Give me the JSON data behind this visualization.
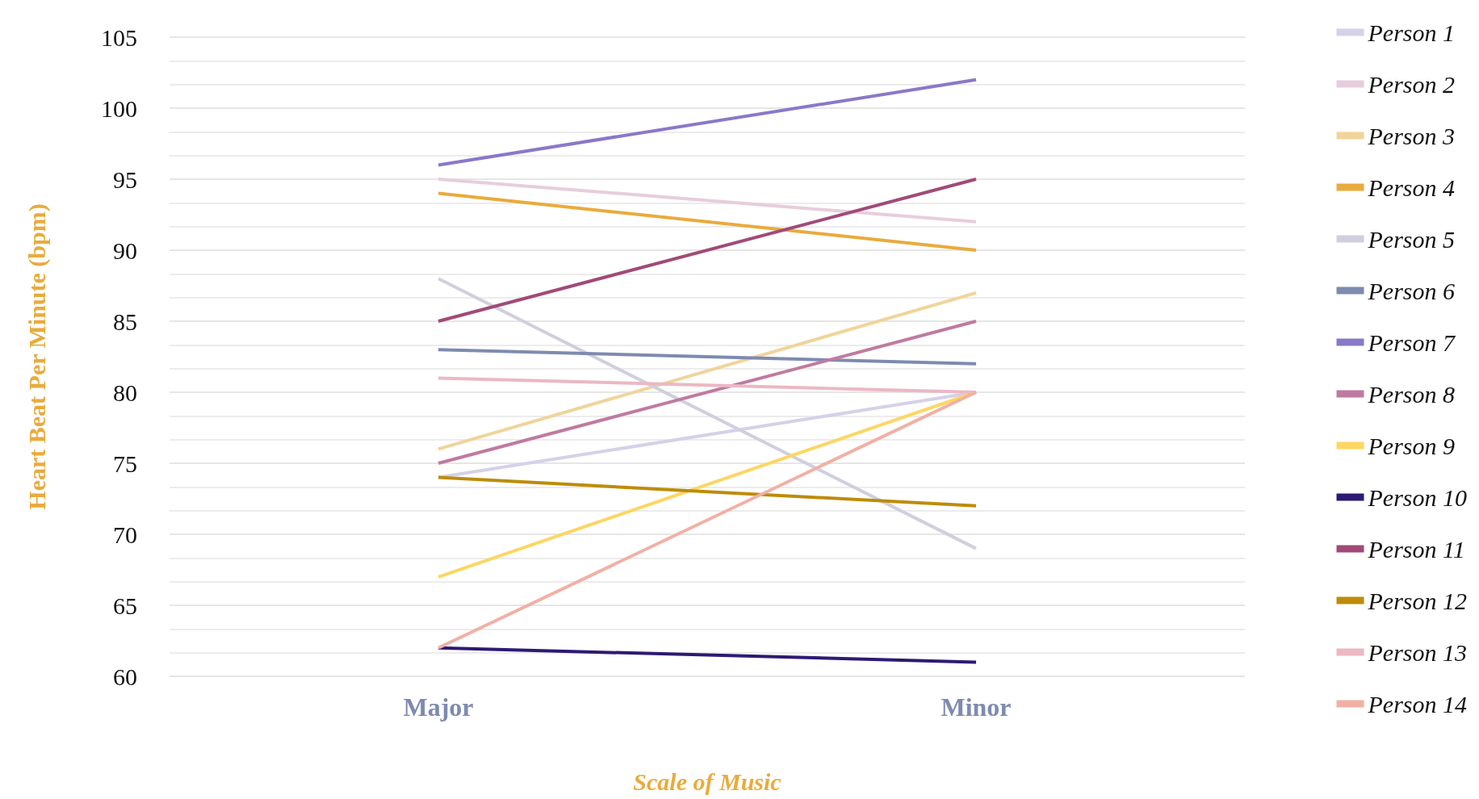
{
  "chart_data": {
    "type": "line",
    "xlabel": "Scale of Music",
    "ylabel": "Heart Beat Per Minute (bpm)",
    "categories": [
      "Major",
      "Minor"
    ],
    "ylim": [
      60,
      105
    ],
    "yticks": [
      60,
      65,
      70,
      75,
      80,
      85,
      90,
      95,
      100,
      105
    ],
    "grid": "y",
    "legend": "right",
    "marker": "none",
    "line_style": "solid",
    "series": [
      {
        "name": "Person 1",
        "color": "#d6d0e8",
        "values": [
          74,
          80
        ]
      },
      {
        "name": "Person 2",
        "color": "#e8cddc",
        "values": [
          95,
          92
        ]
      },
      {
        "name": "Person 3",
        "color": "#f0d49a",
        "values": [
          76,
          87
        ]
      },
      {
        "name": "Person 4",
        "color": "#e9ab3c",
        "values": [
          94,
          90
        ]
      },
      {
        "name": "Person 5",
        "color": "#cfcfdf",
        "values": [
          88,
          69
        ]
      },
      {
        "name": "Person 6",
        "color": "#7e8bb0",
        "values": [
          83,
          82
        ]
      },
      {
        "name": "Person 7",
        "color": "#8a78c8",
        "values": [
          96,
          102
        ]
      },
      {
        "name": "Person 8",
        "color": "#c07aa0",
        "values": [
          75,
          85
        ]
      },
      {
        "name": "Person 9",
        "color": "#fdd663",
        "values": [
          67,
          80
        ]
      },
      {
        "name": "Person 10",
        "color": "#2e1a72",
        "values": [
          62,
          61
        ]
      },
      {
        "name": "Person 11",
        "color": "#a14a78",
        "values": [
          85,
          95
        ]
      },
      {
        "name": "Person 12",
        "color": "#bd8c0a",
        "values": [
          74,
          72
        ]
      },
      {
        "name": "Person 13",
        "color": "#ebb8c4",
        "values": [
          81,
          80
        ]
      },
      {
        "name": "Person 14",
        "color": "#f2b0a4",
        "values": [
          62,
          80
        ]
      }
    ]
  }
}
